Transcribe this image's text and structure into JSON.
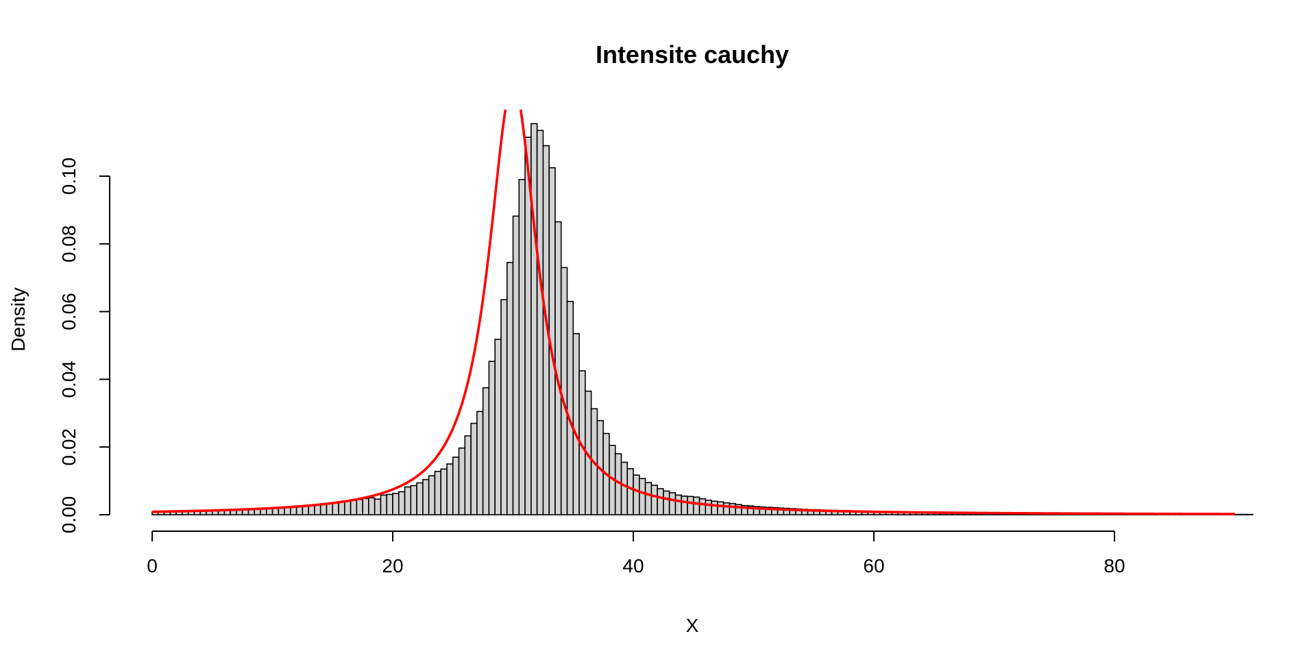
{
  "chart_data": {
    "type": "bar",
    "title": "Intensite cauchy",
    "xlabel": "X",
    "ylabel": "Density",
    "xlim": [
      0,
      90
    ],
    "ylim": [
      0,
      0.115
    ],
    "x_ticks": [
      0,
      20,
      40,
      60,
      80
    ],
    "y_ticks": [
      0.0,
      0.02,
      0.04,
      0.06,
      0.08,
      0.1
    ],
    "x_tick_labels": [
      "0",
      "20",
      "40",
      "60",
      "80"
    ],
    "y_tick_labels": [
      "0.00",
      "0.02",
      "0.04",
      "0.06",
      "0.08",
      "0.10"
    ],
    "histogram": {
      "bin_width": 0.5,
      "start": 0,
      "fill_color": "#d3d3d3",
      "border_color": "#000000",
      "densities": [
        0.0008,
        0.0008,
        0.0009,
        0.0009,
        0.001,
        0.001,
        0.0011,
        0.0011,
        0.0012,
        0.0012,
        0.0013,
        0.0013,
        0.0014,
        0.0014,
        0.0015,
        0.0015,
        0.0016,
        0.0017,
        0.0018,
        0.0018,
        0.002,
        0.0021,
        0.0022,
        0.0023,
        0.0025,
        0.0026,
        0.0028,
        0.0029,
        0.0031,
        0.0033,
        0.0036,
        0.0038,
        0.0041,
        0.0042,
        0.0045,
        0.0048,
        0.005,
        0.0046,
        0.0058,
        0.006,
        0.0063,
        0.0068,
        0.0082,
        0.0086,
        0.0094,
        0.0104,
        0.0115,
        0.0128,
        0.0135,
        0.015,
        0.017,
        0.0197,
        0.0233,
        0.027,
        0.0305,
        0.0375,
        0.0453,
        0.0518,
        0.0635,
        0.0745,
        0.0882,
        0.099,
        0.1115,
        0.1155,
        0.1135,
        0.109,
        0.1025,
        0.0865,
        0.073,
        0.063,
        0.0535,
        0.0425,
        0.0365,
        0.0313,
        0.0278,
        0.024,
        0.0205,
        0.018,
        0.0155,
        0.0136,
        0.0117,
        0.0107,
        0.0095,
        0.0087,
        0.0077,
        0.007,
        0.0065,
        0.0058,
        0.0055,
        0.0054,
        0.0052,
        0.0047,
        0.0043,
        0.004,
        0.0038,
        0.0035,
        0.0033,
        0.003,
        0.0027,
        0.0026,
        0.0024,
        0.0023,
        0.0022,
        0.0021,
        0.002,
        0.0019,
        0.0018,
        0.0017,
        0.0016,
        0.0015,
        0.0015,
        0.0014,
        0.0013,
        0.0013,
        0.0012,
        0.0012,
        0.0011,
        0.0011,
        0.001,
        0.001,
        0.0009,
        0.0009,
        0.0009,
        0.0008,
        0.0008,
        0.0008,
        0.0007,
        0.0007,
        0.0007,
        0.0007,
        0.0006,
        0.0006,
        0.0006,
        0.0006,
        0.0005,
        0.0005,
        0.0005,
        0.0005,
        0.0005,
        0.0004,
        0.0004,
        0.0004,
        0.0004,
        0.0004,
        0.0004,
        0.0004,
        0.0003,
        0.0003,
        0.0003,
        0.0003,
        0.0003,
        0.0003,
        0.0003,
        0.0003,
        0.0003,
        0.0003,
        0.0002,
        0.0002,
        0.0002,
        0.0002,
        0.0002,
        0.0002,
        0.0002,
        0.0002,
        0.0002,
        0.0002,
        0.0002,
        0.0002,
        0.0002,
        0.0002,
        0.0002,
        0.0002,
        0.0002,
        0.0002,
        0.0002,
        0.0002,
        0.0001,
        0.0001,
        0.0001,
        0.0001,
        0.0001,
        0.0001,
        0.0001
      ]
    },
    "curve": {
      "type": "cauchy_density",
      "location": 30,
      "scale": 2.5,
      "x_range": [
        0,
        90
      ],
      "color": "#ff0000"
    }
  }
}
